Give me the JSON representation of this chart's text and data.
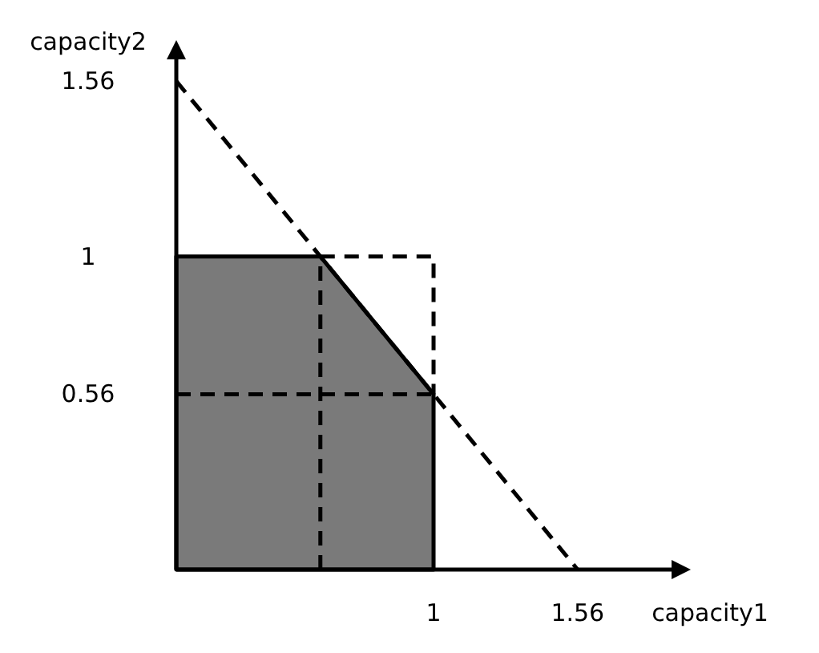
{
  "chart_data": {
    "type": "line",
    "xlabel": "capacity1",
    "ylabel": "capacity2",
    "xlim": [
      0,
      1.95
    ],
    "ylim": [
      0,
      1.65
    ],
    "xticks": [
      1,
      1.56
    ],
    "yticks": [
      0.56,
      1,
      1.56
    ],
    "grid": false,
    "marker": "none",
    "series": [
      {
        "type": "area",
        "color": "#7a7a7a",
        "x": [
          0,
          0.56,
          1
        ],
        "values": [
          1,
          1,
          0.56
        ],
        "line_style": "solid"
      },
      {
        "color": "#000000",
        "x": [
          0,
          1.56
        ],
        "values": [
          1.56,
          0
        ],
        "line_style": "dashed"
      },
      {
        "color": "#000000",
        "x": [
          0.56,
          1,
          1
        ],
        "values": [
          1,
          1,
          0.56
        ],
        "line_style": "dashed"
      },
      {
        "color": "#000000",
        "x": [
          0.56,
          0.56
        ],
        "values": [
          0,
          1
        ],
        "line_style": "dashed"
      },
      {
        "color": "#000000",
        "x": [
          0,
          1
        ],
        "values": [
          0.56,
          0.56
        ],
        "line_style": "dashed"
      }
    ]
  }
}
